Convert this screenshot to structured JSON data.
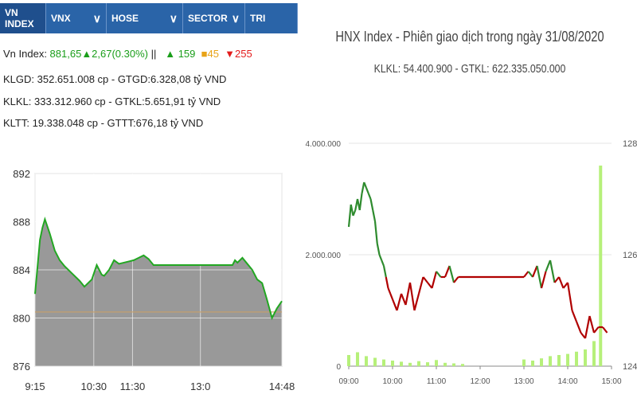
{
  "left_panel": {
    "tabs": [
      {
        "label": "VN INDEX",
        "active": true,
        "dropdown": false,
        "width": 58
      },
      {
        "label": "VNX",
        "active": false,
        "dropdown": true,
        "width": 76
      },
      {
        "label": "HOSE",
        "active": false,
        "dropdown": true,
        "width": 96
      },
      {
        "label": "SECTOR",
        "active": false,
        "dropdown": true,
        "width": 78
      },
      {
        "label": "TRI",
        "active": false,
        "dropdown": false,
        "width": 66
      }
    ],
    "index_line": {
      "prefix": "Vn Index: ",
      "value": "881,65",
      "change": "▲2,67(0.30%)",
      "sep": " ||",
      "advances": "▲ 159",
      "unchanged": "■45",
      "declines": "▼255"
    },
    "line2": "KLGD: 352.651.008 cp - GTGD:6.328,08 tỷ VND",
    "line3": "KLKL: 333.312.960 cp - GTKL:5.651,91 tỷ VND",
    "line4": "KLTT: 19.338.048 cp - GTTT:676,18 tỷ VND",
    "colors": {
      "tab_bg": "#2a64a8",
      "up": "#1a9e1a",
      "down": "#e31b1b",
      "ref": "#e8a317"
    }
  },
  "right_panel": {
    "title": "HNX Index - Phiên giao dịch trong ngày 31/08/2020",
    "subtitle": "KLKL: 54.400.900 - GTKL: 622.335.050.000"
  },
  "chart_data": [
    {
      "type": "area",
      "ylim": [
        876,
        892
      ],
      "yticks": [
        "892",
        "888",
        "884",
        "880",
        "876"
      ],
      "xticks": [
        "9:15",
        "10:30",
        "11:30",
        "13:0",
        "14:48"
      ],
      "reference": 880.5,
      "x": [
        0,
        0.02,
        0.03,
        0.04,
        0.06,
        0.08,
        0.1,
        0.12,
        0.15,
        0.18,
        0.2,
        0.23,
        0.25,
        0.26,
        0.27,
        0.28,
        0.3,
        0.32,
        0.34,
        0.36,
        0.38,
        0.4,
        0.42,
        0.44,
        0.46,
        0.48,
        0.5,
        0.52,
        0.54,
        0.56,
        0.58,
        0.6,
        0.62,
        0.64,
        0.66,
        0.68,
        0.7,
        0.72,
        0.74,
        0.76,
        0.78,
        0.8,
        0.81,
        0.82,
        0.84,
        0.86,
        0.88,
        0.9,
        0.92,
        0.94,
        0.96,
        0.98,
        1.0
      ],
      "values": [
        882.0,
        886.5,
        887.5,
        888.2,
        887.0,
        885.6,
        884.8,
        884.3,
        883.7,
        883.1,
        882.6,
        883.2,
        884.4,
        884.0,
        883.6,
        883.5,
        884.0,
        884.8,
        884.5,
        884.6,
        884.7,
        884.8,
        885.0,
        885.2,
        884.9,
        884.4,
        884.4,
        884.4,
        884.4,
        884.4,
        884.4,
        884.4,
        884.4,
        884.4,
        884.4,
        884.4,
        884.4,
        884.4,
        884.4,
        884.4,
        884.4,
        884.4,
        884.8,
        884.6,
        885.0,
        884.5,
        884.0,
        883.2,
        882.9,
        881.5,
        880.0,
        880.8,
        881.4
      ],
      "colors": {
        "fill": "#999999",
        "line": "#22a722",
        "reference": "#c8a06a"
      }
    },
    {
      "type": "line",
      "title": "HNX Index - Phiên giao dịch trong ngày 31/08/2020",
      "yticks_left": [
        "4.000.000",
        "2.000.000",
        "0"
      ],
      "yticks_right": [
        "128",
        "126",
        "124"
      ],
      "xticks": [
        "09:00",
        "10:00",
        "11:00",
        "12:00",
        "13:00",
        "14:00",
        "15:00"
      ],
      "ylim_price": [
        124,
        128
      ],
      "ylim_volume": [
        0,
        4000000
      ],
      "reference": 125.6,
      "price": {
        "x": [
          9.0,
          9.05,
          9.1,
          9.15,
          9.2,
          9.25,
          9.3,
          9.35,
          9.4,
          9.45,
          9.5,
          9.55,
          9.6,
          9.65,
          9.7,
          9.75,
          9.8,
          9.85,
          9.9,
          9.95,
          10.0,
          10.1,
          10.2,
          10.3,
          10.4,
          10.5,
          10.6,
          10.7,
          10.8,
          10.9,
          11.0,
          11.1,
          11.2,
          11.3,
          11.4,
          11.5,
          12.0,
          12.5,
          13.0,
          13.1,
          13.2,
          13.3,
          13.4,
          13.5,
          13.6,
          13.7,
          13.8,
          13.9,
          14.0,
          14.1,
          14.2,
          14.3,
          14.4,
          14.5,
          14.6,
          14.7,
          14.8,
          14.9
        ],
        "values": [
          126.5,
          126.9,
          126.7,
          126.8,
          127.0,
          126.8,
          127.1,
          127.3,
          127.2,
          127.1,
          127.0,
          126.8,
          126.6,
          126.2,
          126.0,
          125.9,
          125.8,
          125.6,
          125.4,
          125.3,
          125.2,
          125.0,
          125.3,
          125.1,
          125.5,
          125.0,
          125.3,
          125.6,
          125.5,
          125.4,
          125.7,
          125.6,
          125.6,
          125.8,
          125.5,
          125.6,
          125.6,
          125.6,
          125.6,
          125.7,
          125.6,
          125.8,
          125.4,
          125.7,
          125.9,
          125.5,
          125.6,
          125.4,
          125.5,
          125.0,
          124.8,
          124.6,
          124.5,
          124.9,
          124.6,
          124.7,
          124.7,
          124.6
        ],
        "colors": {
          "up": "#2e8b2e",
          "down": "#b00000"
        }
      },
      "volume": {
        "x": [
          9.0,
          9.2,
          9.4,
          9.6,
          9.8,
          10.0,
          10.2,
          10.4,
          10.6,
          10.8,
          11.0,
          11.2,
          11.4,
          11.6,
          13.0,
          13.2,
          13.4,
          13.6,
          13.8,
          14.0,
          14.2,
          14.4,
          14.6,
          14.75
        ],
        "values": [
          200000,
          250000,
          180000,
          150000,
          120000,
          100000,
          80000,
          60000,
          90000,
          70000,
          110000,
          60000,
          50000,
          40000,
          120000,
          100000,
          140000,
          180000,
          200000,
          220000,
          260000,
          300000,
          450000,
          3600000
        ],
        "color": "#b6f07a"
      }
    }
  ]
}
